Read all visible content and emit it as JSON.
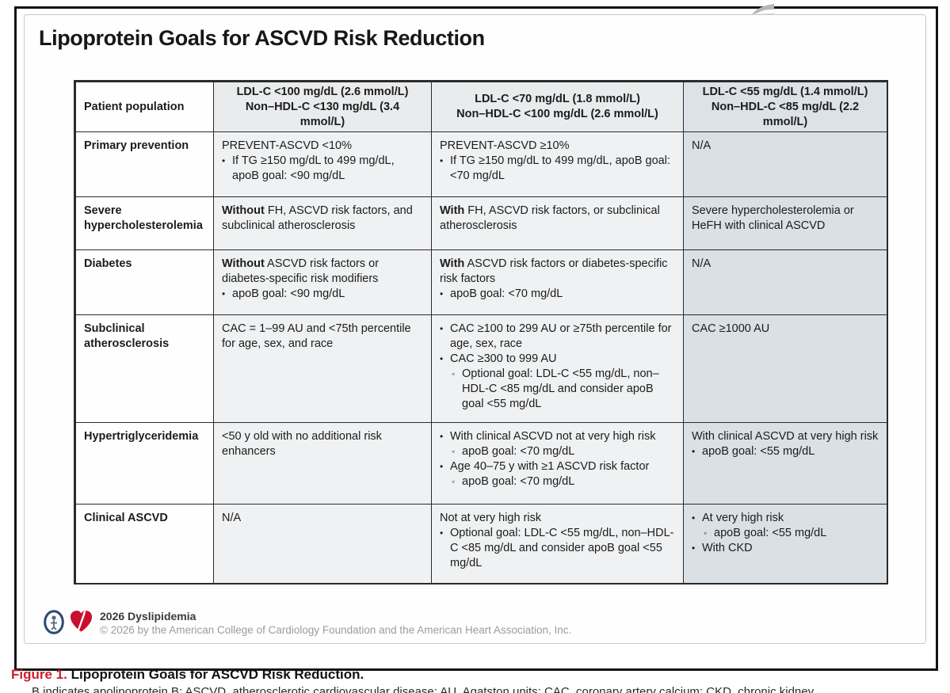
{
  "figure": {
    "title": "Lipoprotein Goals for ASCVD Risk Reduction"
  },
  "table": {
    "header": {
      "patient_population": "Patient population",
      "goal_columns": [
        {
          "lines": [
            "LDL-C <100 mg/dL (2.6 mmol/L)",
            "Non–HDL-C <130 mg/dL (3.4 mmol/L)"
          ]
        },
        {
          "lines": [
            "LDL-C <70 mg/dL (1.8 mmol/L)",
            "Non–HDL-C <100 mg/dL (2.6 mmol/L)"
          ]
        },
        {
          "lines": [
            "LDL-C <55 mg/dL (1.4 mmol/L)",
            "Non–HDL-C <85 mg/dL (2.2 mmol/L)"
          ]
        }
      ]
    },
    "rows": [
      {
        "label": "Primary prevention",
        "cells": [
          [
            {
              "text": "PREVENT-ASCVD <10%"
            },
            {
              "bullet": "dot",
              "text": "If TG ≥150 mg/dL to 499 mg/dL, apoB goal: <90 mg/dL"
            }
          ],
          [
            {
              "text": "PREVENT-ASCVD ≥10%"
            },
            {
              "bullet": "dot",
              "text": "If TG ≥150 mg/dL to 499 mg/dL, apoB goal: <70 mg/dL"
            }
          ],
          [
            {
              "text": "N/A"
            }
          ]
        ]
      },
      {
        "label": "Severe hypercholesterolemia",
        "cells": [
          [
            {
              "segments": [
                {
                  "t": "Without",
                  "b": true
                },
                {
                  "t": " FH, ASCVD risk factors, and subclinical atherosclerosis"
                }
              ]
            }
          ],
          [
            {
              "segments": [
                {
                  "t": "With",
                  "b": true
                },
                {
                  "t": " FH, ASCVD risk factors, or subclinical atherosclerosis"
                }
              ]
            }
          ],
          [
            {
              "text": "Severe hypercholesterolemia or HeFH with clinical ASCVD"
            }
          ]
        ]
      },
      {
        "label": "Diabetes",
        "cells": [
          [
            {
              "segments": [
                {
                  "t": "Without",
                  "b": true
                },
                {
                  "t": " ASCVD risk factors or diabetes-specific risk modifiers"
                }
              ]
            },
            {
              "bullet": "dot",
              "text": "apoB goal: <90 mg/dL"
            }
          ],
          [
            {
              "segments": [
                {
                  "t": "With",
                  "b": true
                },
                {
                  "t": " ASCVD risk factors or diabetes-specific risk factors"
                }
              ]
            },
            {
              "bullet": "dot",
              "text": "apoB goal: <70 mg/dL"
            }
          ],
          [
            {
              "text": "N/A"
            }
          ]
        ]
      },
      {
        "label": "Subclinical atherosclerosis",
        "cells": [
          [
            {
              "text": "CAC = 1–99 AU and <75th percentile for age, sex, and race"
            }
          ],
          [
            {
              "bullet": "dot",
              "text": "CAC ≥100 to 299 AU or ≥75th percentile for age, sex, race"
            },
            {
              "bullet": "dot",
              "text": "CAC ≥300 to 999 AU"
            },
            {
              "bullet": "circle",
              "indent": 1,
              "text": "Optional goal: LDL-C <55 mg/dL, non–HDL-C <85 mg/dL and consider apoB goal <55 mg/dL"
            }
          ],
          [
            {
              "text": "CAC ≥1000 AU"
            }
          ]
        ]
      },
      {
        "label": "Hypertriglyceridemia",
        "cells": [
          [
            {
              "text": "<50 y old with no additional risk enhancers"
            }
          ],
          [
            {
              "bullet": "dot",
              "text": "With clinical ASCVD not at very high risk"
            },
            {
              "bullet": "circle",
              "indent": 1,
              "text": "apoB goal: <70 mg/dL"
            },
            {
              "bullet": "dot",
              "text": "Age 40–75 y with ≥1 ASCVD risk factor"
            },
            {
              "bullet": "circle",
              "indent": 1,
              "text": "apoB goal: <70 mg/dL"
            }
          ],
          [
            {
              "text": "With clinical ASCVD at very high risk"
            },
            {
              "bullet": "dot",
              "text": "apoB goal: <55 mg/dL"
            }
          ]
        ]
      },
      {
        "label": "Clinical ASCVD",
        "cells": [
          [
            {
              "text": "N/A"
            }
          ],
          [
            {
              "text": "Not at very high risk"
            },
            {
              "bullet": "dot",
              "text": "Optional goal: LDL-C <55 mg/dL, non–HDL-C <85 mg/dL and consider apoB goal <55 mg/dL"
            }
          ],
          [
            {
              "bullet": "dot",
              "text": "At very high risk"
            },
            {
              "bullet": "circle",
              "indent": 1,
              "text": "apoB goal: <55 mg/dL"
            },
            {
              "bullet": "dot",
              "text": "With CKD"
            }
          ]
        ]
      }
    ]
  },
  "footer": {
    "program": "2026 Dyslipidemia",
    "copyright": "© 2026 by the American College of Cardiology Foundation and the American Heart Association, Inc."
  },
  "caption": {
    "label": "Figure 1.",
    "title": " Lipoprotein Goals for ASCVD Risk Reduction.",
    "abbreviations": "B indicates apolipoprotein B; ASCVD, atherosclerotic cardiovascular disease; AU, Agatston units; CAC, coronary artery calcium; CKD, chronic kidney"
  },
  "icons": {
    "acc": "american-college-of-cardiology-logo",
    "aha": "american-heart-association-heart-torch-logo",
    "artifact": "gray-cursor-artifact"
  },
  "colors": {
    "header_gray_bg": "#e9ebed",
    "header_blue_bg": "#dce2e7",
    "body_gray_bg": "#f0f1f2",
    "body_blue_bg": "#d9e0e6",
    "figure_label_red": "#cb1f2b",
    "aha_red": "#c8102e",
    "acc_navy": "#2c4a73",
    "copyright_gray": "#9c9c9c"
  }
}
